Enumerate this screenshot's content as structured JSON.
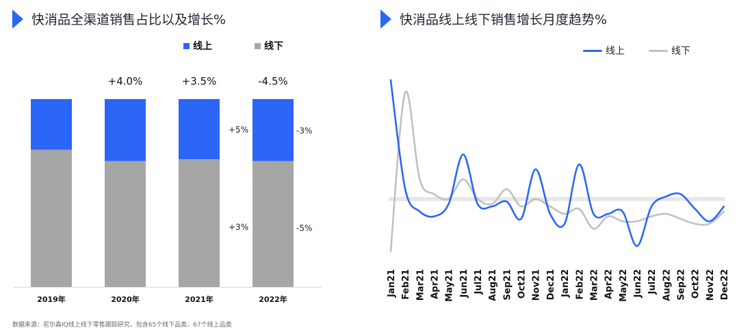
{
  "colors": {
    "online": "#2b66f6",
    "offline": "#a6a6a6",
    "accent": "#2b66f6"
  },
  "left": {
    "title": "快消品全渠道销售占比以及增长%",
    "legend": [
      {
        "name": "线上",
        "color": "#2b66f6"
      },
      {
        "name": "线下",
        "color": "#a6a6a6"
      }
    ]
  },
  "right": {
    "title": "快消品线上线下销售增长月度趋势%",
    "legend": [
      {
        "name": "线上",
        "color": "#2b66f6"
      },
      {
        "name": "线下",
        "color": "#c0c0c0"
      }
    ]
  },
  "footnote": "数据来源：尼尔森IQ线上线下零售跟踪研究，包含65个线下品类，67个线上品类",
  "chart_data": [
    {
      "type": "bar",
      "stacked": true,
      "categories": [
        "2019年",
        "2020年",
        "2021年",
        "2022年"
      ],
      "series": [
        {
          "name": "线下",
          "values": [
            73,
            67,
            68,
            67
          ]
        },
        {
          "name": "线上",
          "values": [
            27,
            33,
            32,
            33
          ]
        }
      ],
      "total_growth_labels": [
        "",
        "+4.0%",
        "+3.5%",
        "-4.5%"
      ],
      "annotations": [
        {
          "category": "2021年",
          "series": "线上",
          "text": "+5%"
        },
        {
          "category": "2021年",
          "series": "线下",
          "text": "+3%"
        },
        {
          "category": "2022年",
          "series": "线上",
          "text": "-3%"
        },
        {
          "category": "2022年",
          "series": "线下",
          "text": "-5%"
        }
      ],
      "ylim": [
        0,
        100
      ],
      "legend_position": "top-right",
      "grid": false
    },
    {
      "type": "line",
      "x": [
        "Jan21",
        "Feb21",
        "Mar21",
        "Apr21",
        "May21",
        "Jun21",
        "Jul21",
        "Aug21",
        "Sep21",
        "Oct21",
        "Nov21",
        "Dec21",
        "Jan22",
        "Feb22",
        "Mar22",
        "Apr22",
        "May22",
        "Jun22",
        "Jul22",
        "Aug22",
        "Sep22",
        "Oct22",
        "Nov22",
        "Dec22"
      ],
      "series": [
        {
          "name": "线上",
          "values": [
            48,
            4,
            -5,
            -7,
            -2,
            18,
            -2,
            -3,
            -1,
            -8,
            12,
            -6,
            -10,
            14,
            -6,
            -6,
            -5,
            -19,
            -3,
            1,
            2,
            -4,
            -9,
            -3
          ]
        },
        {
          "name": "线下",
          "values": [
            -21,
            43,
            8,
            2,
            0,
            8,
            0,
            -2,
            4,
            -3,
            0,
            -3,
            -6,
            -4,
            -12,
            -7,
            -9,
            -9,
            -7,
            -6,
            -8,
            -10,
            -10,
            -5
          ]
        }
      ],
      "ylim": [
        -25,
        50
      ],
      "legend_position": "top-right",
      "grid": false
    }
  ]
}
